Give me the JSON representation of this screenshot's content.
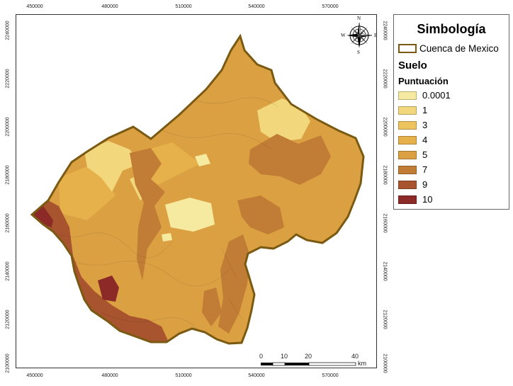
{
  "legend": {
    "title": "Simbología",
    "boundary_label": "Cuenca de Mexico",
    "layer_label": "Suelo",
    "score_label": "Puntuación",
    "items": [
      {
        "label": "0.0001",
        "color": "#f6e9a0"
      },
      {
        "label": "1",
        "color": "#f2d77c"
      },
      {
        "label": "3",
        "color": "#edc35e"
      },
      {
        "label": "4",
        "color": "#e6b14a"
      },
      {
        "label": "5",
        "color": "#dba042"
      },
      {
        "label": "7",
        "color": "#c17d36"
      },
      {
        "label": "9",
        "color": "#a8542f"
      },
      {
        "label": "10",
        "color": "#8b2a26"
      }
    ]
  },
  "compass": {
    "n": "N",
    "s": "S",
    "e": "E",
    "w": "W"
  },
  "axes": {
    "x_ticks": [
      "450000",
      "480000",
      "510000",
      "540000",
      "570000"
    ],
    "y_ticks": [
      "2240000",
      "2220000",
      "2200000",
      "2180000",
      "2160000",
      "2140000",
      "2120000",
      "2100000"
    ]
  },
  "scalebar": {
    "labels": [
      "0",
      "10",
      "20",
      "40"
    ],
    "unit": "km"
  },
  "colors": {
    "boundary": "#7a5a12"
  }
}
